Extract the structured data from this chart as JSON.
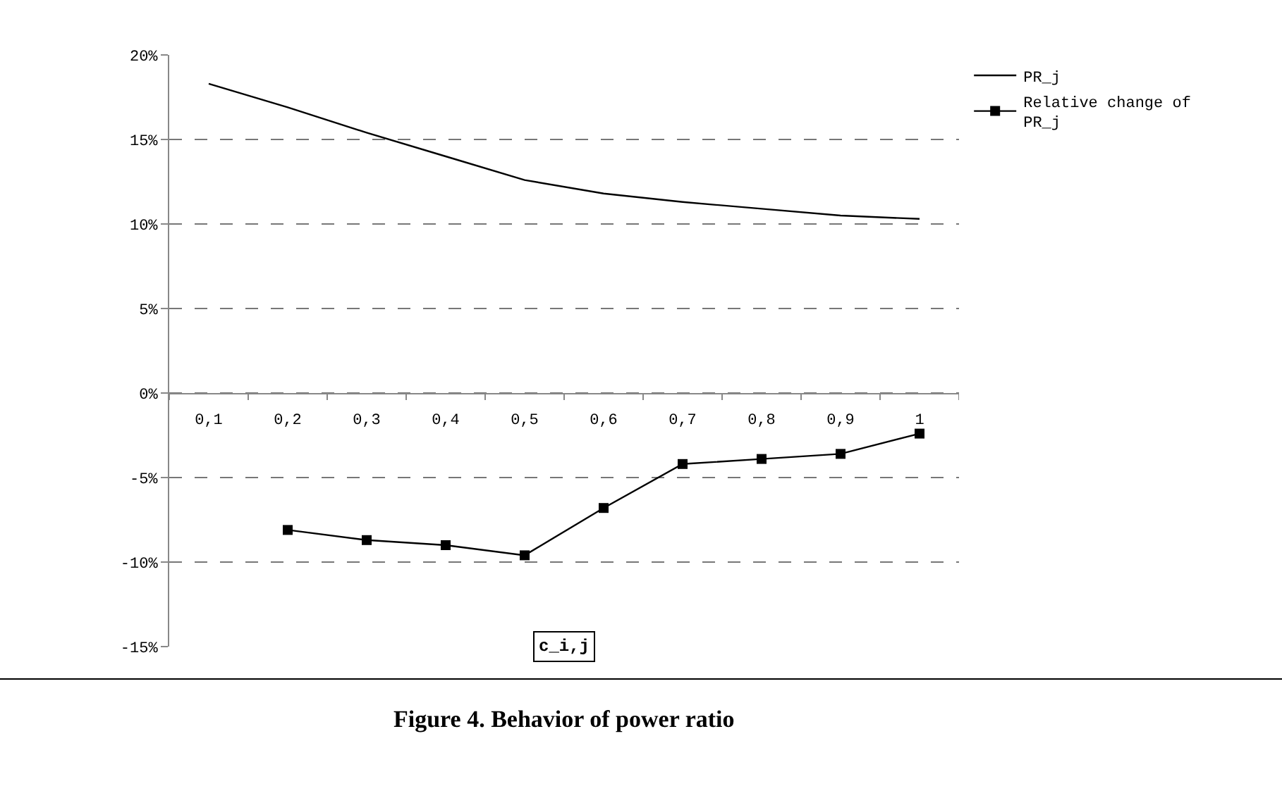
{
  "chart_data": {
    "type": "line",
    "title": "Figure 4. Behavior of power ratio",
    "xlabel": "c_i,j",
    "categories": [
      "0,1",
      "0,2",
      "0,3",
      "0,4",
      "0,5",
      "0,6",
      "0,7",
      "0,8",
      "0,9",
      "1"
    ],
    "series": [
      {
        "name": "PR_j",
        "color": "#000000",
        "marker": "none",
        "values": [
          18.3,
          16.9,
          15.4,
          14.0,
          12.6,
          11.8,
          11.3,
          10.9,
          10.5,
          10.3
        ]
      },
      {
        "name": "Relative change of PR_j",
        "color": "#000000",
        "marker": "square",
        "values": [
          null,
          -8.1,
          -8.7,
          -9.0,
          -9.6,
          -6.8,
          -4.2,
          -3.9,
          -3.6,
          -2.4
        ]
      }
    ],
    "ylim": [
      -15,
      20
    ],
    "yticks": [
      {
        "value": -15,
        "label": "-15%"
      },
      {
        "value": -10,
        "label": "-10%"
      },
      {
        "value": -5,
        "label": "-5%"
      },
      {
        "value": 0,
        "label": "0%"
      },
      {
        "value": 5,
        "label": "5%"
      },
      {
        "value": 10,
        "label": "10%"
      },
      {
        "value": 15,
        "label": "15%"
      },
      {
        "value": 20,
        "label": "20%"
      }
    ],
    "grid": "y",
    "legend": "right",
    "line_style": "solid"
  }
}
